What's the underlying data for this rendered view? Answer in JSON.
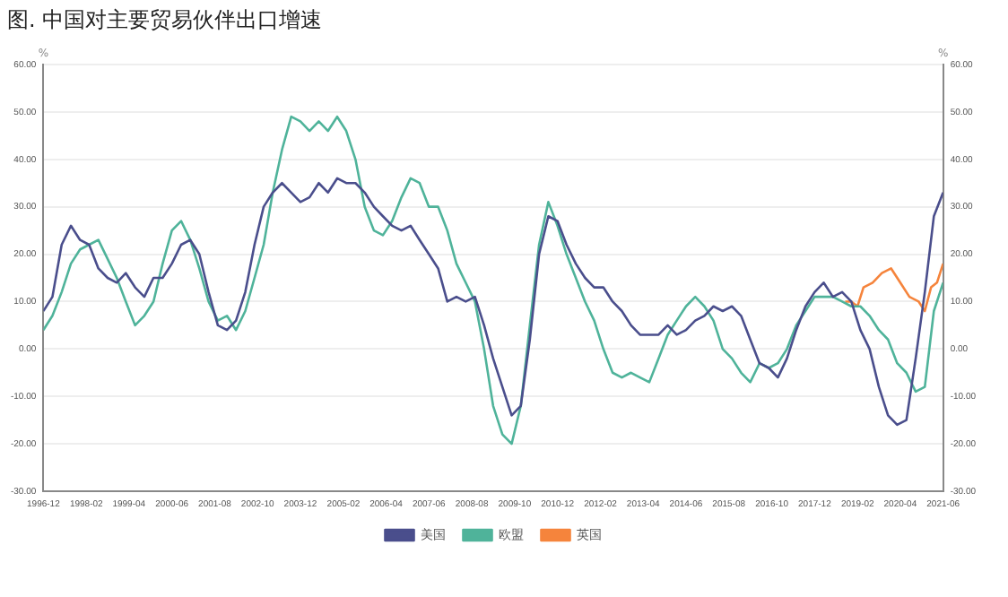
{
  "chart_data": {
    "type": "line",
    "title": "图. 中国对主要贸易伙伴出口增速",
    "ylabel": "%",
    "y2label": "%",
    "x": [
      "1996-12",
      "1997-03",
      "1997-06",
      "1997-09",
      "1997-12",
      "1998-03",
      "1998-06",
      "1998-09",
      "1998-12",
      "1999-03",
      "1999-06",
      "1999-09",
      "1999-12",
      "2000-03",
      "2000-06",
      "2000-09",
      "2000-12",
      "2001-03",
      "2001-06",
      "2001-09",
      "2001-12",
      "2002-03",
      "2002-06",
      "2002-09",
      "2002-12",
      "2003-03",
      "2003-06",
      "2003-09",
      "2003-12",
      "2004-03",
      "2004-06",
      "2004-09",
      "2004-12",
      "2005-03",
      "2005-06",
      "2005-09",
      "2005-12",
      "2006-03",
      "2006-06",
      "2006-09",
      "2006-12",
      "2007-03",
      "2007-06",
      "2007-09",
      "2007-12",
      "2008-03",
      "2008-06",
      "2008-09",
      "2008-12",
      "2009-03",
      "2009-06",
      "2009-09",
      "2009-12",
      "2010-03",
      "2010-06",
      "2010-09",
      "2010-12",
      "2011-03",
      "2011-06",
      "2011-09",
      "2011-12",
      "2012-03",
      "2012-06",
      "2012-09",
      "2012-12",
      "2013-03",
      "2013-06",
      "2013-09",
      "2013-12",
      "2014-03",
      "2014-06",
      "2014-09",
      "2014-12",
      "2015-03",
      "2015-06",
      "2015-09",
      "2015-12",
      "2016-03",
      "2016-06",
      "2016-09",
      "2016-12",
      "2017-03",
      "2017-06",
      "2017-09",
      "2017-12",
      "2018-03",
      "2018-06",
      "2018-09",
      "2018-12",
      "2019-03",
      "2019-06",
      "2019-09",
      "2019-12",
      "2020-03",
      "2020-06",
      "2020-09",
      "2020-12",
      "2021-03",
      "2021-06"
    ],
    "series": [
      {
        "name": "美国",
        "color": "#4a4e8c",
        "values": [
          8,
          11,
          22,
          26,
          23,
          22,
          17,
          15,
          14,
          16,
          13,
          11,
          15,
          15,
          18,
          22,
          23,
          20,
          12,
          5,
          4,
          6,
          12,
          22,
          30,
          33,
          35,
          33,
          31,
          32,
          35,
          33,
          36,
          35,
          35,
          33,
          30,
          28,
          26,
          25,
          26,
          23,
          20,
          17,
          10,
          11,
          10,
          11,
          5,
          -2,
          -8,
          -14,
          -12,
          2,
          20,
          28,
          27,
          22,
          18,
          15,
          13,
          13,
          10,
          8,
          5,
          3,
          3,
          3,
          5,
          3,
          4,
          6,
          7,
          9,
          8,
          9,
          7,
          2,
          -3,
          -4,
          -6,
          -2,
          4,
          9,
          12,
          14,
          11,
          12,
          10,
          4,
          0,
          -8,
          -14,
          -16,
          -15,
          -2,
          12,
          28,
          33
        ]
      },
      {
        "name": "欧盟",
        "color": "#4fb39a",
        "values": [
          4,
          7,
          12,
          18,
          21,
          22,
          23,
          19,
          15,
          10,
          5,
          7,
          10,
          18,
          25,
          27,
          23,
          17,
          10,
          6,
          7,
          4,
          8,
          15,
          22,
          33,
          42,
          49,
          48,
          46,
          48,
          46,
          49,
          46,
          40,
          30,
          25,
          24,
          27,
          32,
          36,
          35,
          30,
          30,
          25,
          18,
          14,
          10,
          0,
          -12,
          -18,
          -20,
          -12,
          5,
          22,
          31,
          26,
          20,
          15,
          10,
          6,
          0,
          -5,
          -6,
          -5,
          -6,
          -7,
          -2,
          3,
          6,
          9,
          11,
          9,
          6,
          0,
          -2,
          -5,
          -7,
          -3,
          -4,
          -3,
          0,
          5,
          8,
          11,
          11,
          11,
          10,
          9,
          9,
          7,
          4,
          2,
          -3,
          -5,
          -9,
          -8,
          8,
          14
        ]
      },
      {
        "name": "英国",
        "color": "#f5843c",
        "x": [
          "2018-10",
          "2018-12",
          "2019-02",
          "2019-04",
          "2019-07",
          "2019-10",
          "2020-01",
          "2020-04",
          "2020-07",
          "2020-10",
          "2020-12",
          "2021-02",
          "2021-04",
          "2021-06"
        ],
        "values": [
          10,
          10,
          9,
          13,
          14,
          16,
          17,
          14,
          11,
          10,
          8,
          13,
          14,
          18
        ]
      }
    ],
    "xlim": [
      "1996-12",
      "2021-06"
    ],
    "xticks": [
      "1996-12",
      "1998-02",
      "1999-04",
      "2000-06",
      "2001-08",
      "2002-10",
      "2003-12",
      "2005-02",
      "2006-04",
      "2007-06",
      "2008-08",
      "2009-10",
      "2010-12",
      "2012-02",
      "2013-04",
      "2014-06",
      "2015-08",
      "2016-10",
      "2017-12",
      "2019-02",
      "2020-04",
      "2021-06"
    ],
    "ylim": [
      -30,
      60
    ],
    "yticks": [
      {
        "value": -30,
        "label": "-30.00"
      },
      {
        "value": -20,
        "label": "-20.00"
      },
      {
        "value": -10,
        "label": "-10.00"
      },
      {
        "value": 0,
        "label": "0.00"
      },
      {
        "value": 10,
        "label": "10.00"
      },
      {
        "value": 20,
        "label": "20.00"
      },
      {
        "value": 30,
        "label": "30.00"
      },
      {
        "value": 40,
        "label": "40.00"
      },
      {
        "value": 50,
        "label": "50.00"
      },
      {
        "value": 60,
        "label": "60.00"
      }
    ],
    "y2lim": [
      -30,
      60
    ],
    "y2ticks": [
      {
        "value": -30,
        "label": "-30.00"
      },
      {
        "value": -20,
        "label": "-20.00"
      },
      {
        "value": -10,
        "label": "-10.00"
      },
      {
        "value": 0,
        "label": "0.00"
      },
      {
        "value": 10,
        "label": "10.00"
      },
      {
        "value": 20,
        "label": "20.00"
      },
      {
        "value": 30,
        "label": "30.00"
      },
      {
        "value": 40,
        "label": "40.00"
      },
      {
        "value": 50,
        "label": "50.00"
      },
      {
        "value": 60,
        "label": "60.00"
      }
    ],
    "grid": "y",
    "legend": "bottom",
    "marker": "none",
    "line_style": "solid"
  }
}
